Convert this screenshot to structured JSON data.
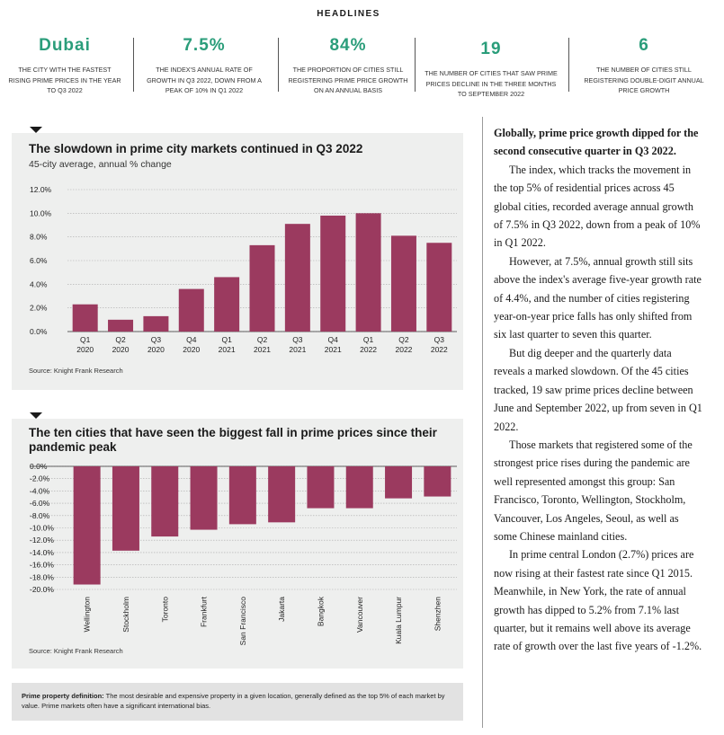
{
  "headlines": {
    "title": "HEADLINES",
    "stats": [
      {
        "value": "Dubai",
        "desc": "THE CITY WITH THE FASTEST RISING PRIME PRICES IN THE YEAR TO Q3 2022"
      },
      {
        "value": "7.5%",
        "desc": "THE INDEX'S ANNUAL RATE OF GROWTH IN Q3 2022, DOWN FROM A PEAK OF 10% IN Q1 2022"
      },
      {
        "value": "84%",
        "desc": "THE PROPORTION OF CITIES STILL REGISTERING PRIME PRICE GROWTH ON AN ANNUAL BASIS"
      },
      {
        "value": "19",
        "desc": "THE NUMBER OF CITIES THAT SAW PRIME PRICES DECLINE IN THE THREE MONTHS TO SEPTEMBER 2022"
      },
      {
        "value": "6",
        "desc": "THE NUMBER OF CITIES STILL REGISTERING DOUBLE-DIGIT ANNUAL PRICE GROWTH"
      }
    ]
  },
  "colors": {
    "accent": "#2a9d7a",
    "bar": "#9b3a5f",
    "panel": "#eeefee"
  },
  "chart_data": [
    {
      "type": "bar",
      "title": "The slowdown in prime city markets continued in Q3 2022",
      "subtitle": "45-city average, annual % change",
      "source": "Source: Knight Frank Research",
      "categories": [
        "Q1 2020",
        "Q2 2020",
        "Q3 2020",
        "Q4 2020",
        "Q1 2021",
        "Q2 2021",
        "Q3 2021",
        "Q4 2021",
        "Q1 2022",
        "Q2 2022",
        "Q3 2022"
      ],
      "category_lines": [
        [
          "Q1",
          "2020"
        ],
        [
          "Q2",
          "2020"
        ],
        [
          "Q3",
          "2020"
        ],
        [
          "Q4",
          "2020"
        ],
        [
          "Q1",
          "2021"
        ],
        [
          "Q2",
          "2021"
        ],
        [
          "Q3",
          "2021"
        ],
        [
          "Q4",
          "2021"
        ],
        [
          "Q1",
          "2022"
        ],
        [
          "Q2",
          "2022"
        ],
        [
          "Q3",
          "2022"
        ]
      ],
      "values": [
        2.3,
        1.0,
        1.3,
        3.6,
        4.6,
        7.3,
        9.1,
        9.8,
        10.0,
        8.1,
        7.5
      ],
      "ylim": [
        0,
        12
      ],
      "yticks": [
        "0.0%",
        "2.0%",
        "4.0%",
        "6.0%",
        "8.0%",
        "10.0%",
        "12.0%"
      ],
      "grid": true
    },
    {
      "type": "bar",
      "title": "The ten cities that have seen the biggest fall in prime prices since their pandemic peak",
      "source": "Source: Knight Frank Research",
      "categories": [
        "Wellington",
        "Stockholm",
        "Toronto",
        "Frankfurt",
        "San Francisco",
        "Jakarta",
        "Bangkok",
        "Vancouver",
        "Kuala Lumpur",
        "Shenzhen"
      ],
      "values": [
        -19.2,
        -13.7,
        -11.4,
        -10.3,
        -9.4,
        -9.1,
        -6.8,
        -6.8,
        -5.2,
        -4.9
      ],
      "ylim": [
        -20,
        0
      ],
      "yticks": [
        "0.0%",
        "-2.0%",
        "-4.0%",
        "-6.0%",
        "-8.0%",
        "-10.0%",
        "-12.0%",
        "-14.0%",
        "-16.0%",
        "-18.0%",
        "-20.0%"
      ],
      "grid": true
    }
  ],
  "definition": {
    "label": "Prime property definition:",
    "text": "The most desirable and expensive property in a given location, generally defined as the top 5% of each market by value. Prime markets often have a significant international bias."
  },
  "article": {
    "lead": "Globally, prime price growth dipped for the second consecutive quarter in Q3 2022.",
    "paragraphs": [
      "The index, which tracks the movement in the top 5% of residential prices across 45 global cities, recorded average annual growth of 7.5% in Q3 2022, down from a peak of 10% in Q1 2022.",
      "However, at 7.5%, annual growth still sits above the index's average five-year growth rate of 4.4%, and the number of cities registering year-on-year price falls has only shifted from six last quarter to seven this quarter.",
      "But dig deeper and the quarterly data reveals a marked slowdown. Of the 45 cities tracked, 19 saw prime prices decline between June and September 2022, up from seven in Q1 2022.",
      "Those markets that registered some of the strongest price rises during the pandemic are well represented amongst this group: San Francisco, Toronto, Wellington, Stockholm, Vancouver, Los Angeles, Seoul, as well as some Chinese mainland cities.",
      "In prime central London (2.7%) prices are now rising at their fastest rate since Q1 2015. Meanwhile, in New York, the rate of annual growth has dipped to 5.2% from 7.1% last quarter, but it remains well above its average rate of growth over the last five years of -1.2%."
    ]
  }
}
